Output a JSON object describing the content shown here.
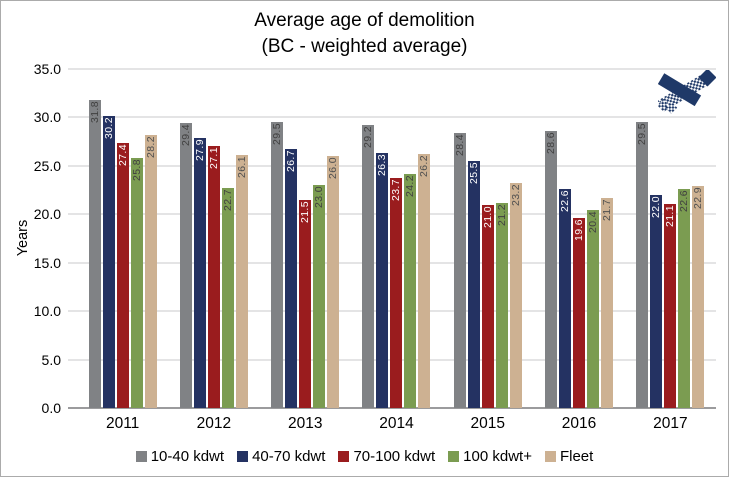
{
  "title": {
    "line1": "Average age of demolition",
    "line2": "(BC - weighted average)"
  },
  "colors": {
    "gridline": "#C9C9CB",
    "axis_line": "#9B9B9D",
    "logo_navy": "#1F3968"
  },
  "chart_data": {
    "type": "bar",
    "title": "Average age of demolition (BC - weighted average)",
    "ylabel": "Years",
    "ylim": [
      0,
      35
    ],
    "grid": true,
    "legend_position": "bottom",
    "categories": [
      "2011",
      "2012",
      "2013",
      "2014",
      "2015",
      "2016",
      "2017"
    ],
    "ytick_values": [
      0,
      5,
      10,
      15,
      20,
      25,
      30,
      35
    ],
    "ytick_labels": [
      "0.0",
      "5.0",
      "10.0",
      "15.0",
      "20.0",
      "25.0",
      "30.0",
      "35.0"
    ],
    "series": [
      {
        "name": "10-40 kdwt",
        "color": "#808285",
        "label_color": "#404040",
        "values": [
          31.8,
          29.4,
          29.5,
          29.2,
          28.4,
          28.6,
          29.5
        ]
      },
      {
        "name": "40-70 kdwt",
        "color": "#243262",
        "label_color": "#FFFFFF",
        "values": [
          30.2,
          27.9,
          26.7,
          26.3,
          25.5,
          22.6,
          22.0
        ]
      },
      {
        "name": "70-100 kdwt",
        "color": "#9A1C1E",
        "label_color": "#FFFFFF",
        "values": [
          27.4,
          27.1,
          21.5,
          23.7,
          21.0,
          19.6,
          21.1
        ]
      },
      {
        "name": "100 kdwt+",
        "color": "#7B9C51",
        "label_color": "#404040",
        "values": [
          25.8,
          22.7,
          23.0,
          24.2,
          21.2,
          20.4,
          22.6
        ]
      },
      {
        "name": "Fleet",
        "color": "#CDB192",
        "label_color": "#4F4F4F",
        "values": [
          28.2,
          26.1,
          26.0,
          26.2,
          23.2,
          21.7,
          22.9
        ]
      }
    ]
  }
}
